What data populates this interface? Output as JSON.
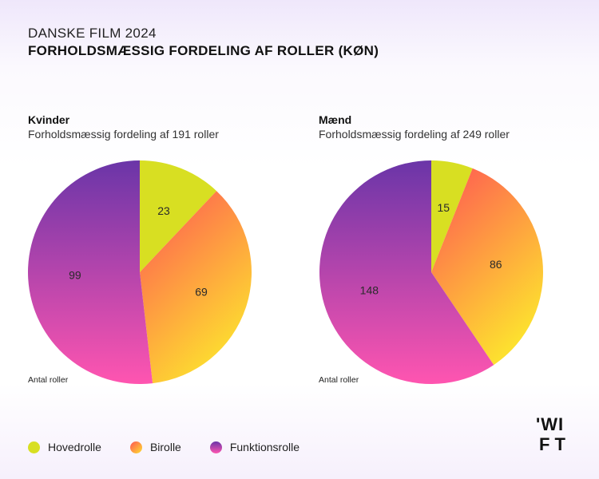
{
  "header": {
    "kicker": "DANSKE FILM 2024",
    "title": "FORHOLDSMÆSSIG FORDELING AF ROLLER (KØN)"
  },
  "chart_data": [
    {
      "type": "pie",
      "title": "Kvinder",
      "subtitle": "Forholdsmæssig fordeling af 191 roller",
      "note": "Antal roller",
      "categories": [
        "Hovedrolle",
        "Birolle",
        "Funktionsrolle"
      ],
      "values": [
        23,
        69,
        99
      ]
    },
    {
      "type": "pie",
      "title": "Mænd",
      "subtitle": "Forholdsmæssig fordeling af 249 roller",
      "note": "Antal roller",
      "categories": [
        "Hovedrolle",
        "Birolle",
        "Funktionsrolle"
      ],
      "values": [
        15,
        86,
        148
      ]
    }
  ],
  "legend": [
    {
      "label": "Hovedrolle",
      "color": "#d6e024"
    },
    {
      "label": "Birolle",
      "color": "#ff5e4d"
    },
    {
      "label": "Funktionsrolle",
      "color": "#b83fd6"
    }
  ],
  "colors": {
    "hovedrolle": "#d8df22",
    "birolle_start": "#ff5454",
    "birolle_end": "#fde02f",
    "funktion_start": "#6a35a8",
    "funktion_end": "#ff55b0"
  },
  "logo_text": "WIFT"
}
